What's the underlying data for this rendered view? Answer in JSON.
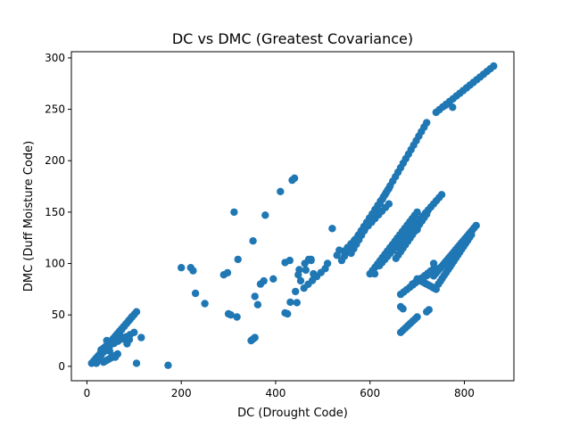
{
  "chart_data": {
    "type": "scatter",
    "title": "DC vs DMC (Greatest Covariance)",
    "xlabel": "DC (Drought Code)",
    "ylabel": "DMC (Duff Moisture Code)",
    "xlim": [
      -33,
      905
    ],
    "ylim": [
      -14,
      306
    ],
    "xticks": [
      0,
      200,
      400,
      600,
      800
    ],
    "yticks": [
      0,
      50,
      100,
      150,
      200,
      250,
      300
    ],
    "grid": false,
    "color": "#1f77b4",
    "segments": [
      {
        "from": [
          10,
          3
        ],
        "to": [
          105,
          53
        ],
        "n": 22
      },
      {
        "from": [
          25,
          8
        ],
        "to": [
          95,
          48
        ],
        "n": 14
      },
      {
        "from": [
          30,
          16
        ],
        "to": [
          70,
          30
        ],
        "n": 9
      },
      {
        "from": [
          35,
          4
        ],
        "to": [
          65,
          12
        ],
        "n": 7
      },
      {
        "from": [
          40,
          18
        ],
        "to": [
          100,
          33
        ],
        "n": 8
      },
      {
        "from": [
          348,
          25
        ],
        "to": [
          356,
          28
        ],
        "n": 3
      },
      {
        "from": [
          420,
          52
        ],
        "to": [
          475,
          104
        ],
        "n": 6
      },
      {
        "from": [
          460,
          76
        ],
        "to": [
          505,
          95
        ],
        "n": 6
      },
      {
        "from": [
          540,
          103
        ],
        "to": [
          640,
          173
        ],
        "n": 18
      },
      {
        "from": [
          545,
          112
        ],
        "to": [
          640,
          158
        ],
        "n": 14
      },
      {
        "from": [
          560,
          110
        ],
        "to": [
          720,
          237
        ],
        "n": 30
      },
      {
        "from": [
          600,
          90
        ],
        "to": [
          700,
          150
        ],
        "n": 20
      },
      {
        "from": [
          620,
          98
        ],
        "to": [
          752,
          167
        ],
        "n": 24
      },
      {
        "from": [
          655,
          105
        ],
        "to": [
          720,
          148
        ],
        "n": 14
      },
      {
        "from": [
          740,
          247
        ],
        "to": [
          862,
          292
        ],
        "n": 18
      },
      {
        "from": [
          665,
          33
        ],
        "to": [
          700,
          48
        ],
        "n": 8
      },
      {
        "from": [
          665,
          70
        ],
        "to": [
          735,
          95
        ],
        "n": 12
      },
      {
        "from": [
          700,
          85
        ],
        "to": [
          740,
          75
        ],
        "n": 10
      },
      {
        "from": [
          735,
          88
        ],
        "to": [
          825,
          137
        ],
        "n": 24
      },
      {
        "from": [
          745,
          80
        ],
        "to": [
          815,
          128
        ],
        "n": 18
      },
      {
        "from": [
          690,
          80
        ],
        "to": [
          745,
          95
        ],
        "n": 10
      }
    ],
    "points": [
      [
        15,
        5
      ],
      [
        20,
        3
      ],
      [
        42,
        25
      ],
      [
        48,
        15
      ],
      [
        58,
        10
      ],
      [
        60,
        9
      ],
      [
        85,
        22
      ],
      [
        90,
        26
      ],
      [
        105,
        3
      ],
      [
        115,
        28
      ],
      [
        172,
        1
      ],
      [
        200,
        96
      ],
      [
        220,
        96
      ],
      [
        225,
        93
      ],
      [
        230,
        71
      ],
      [
        250,
        61
      ],
      [
        290,
        89
      ],
      [
        298,
        91
      ],
      [
        300,
        51
      ],
      [
        305,
        50
      ],
      [
        312,
        150
      ],
      [
        318,
        48
      ],
      [
        320,
        104
      ],
      [
        352,
        122
      ],
      [
        356,
        68
      ],
      [
        362,
        60
      ],
      [
        368,
        80
      ],
      [
        375,
        83
      ],
      [
        378,
        147
      ],
      [
        395,
        85
      ],
      [
        410,
        170
      ],
      [
        420,
        101
      ],
      [
        425,
        51
      ],
      [
        430,
        103
      ],
      [
        435,
        181
      ],
      [
        440,
        183
      ],
      [
        445,
        62
      ],
      [
        448,
        89
      ],
      [
        450,
        94
      ],
      [
        462,
        100
      ],
      [
        470,
        104
      ],
      [
        475,
        103
      ],
      [
        480,
        90
      ],
      [
        510,
        100
      ],
      [
        520,
        134
      ],
      [
        530,
        108
      ],
      [
        535,
        113
      ],
      [
        610,
        90
      ],
      [
        665,
        58
      ],
      [
        670,
        56
      ],
      [
        690,
        140
      ],
      [
        700,
        133
      ],
      [
        720,
        53
      ],
      [
        725,
        55
      ],
      [
        735,
        100
      ],
      [
        760,
        254
      ],
      [
        775,
        252
      ]
    ]
  }
}
